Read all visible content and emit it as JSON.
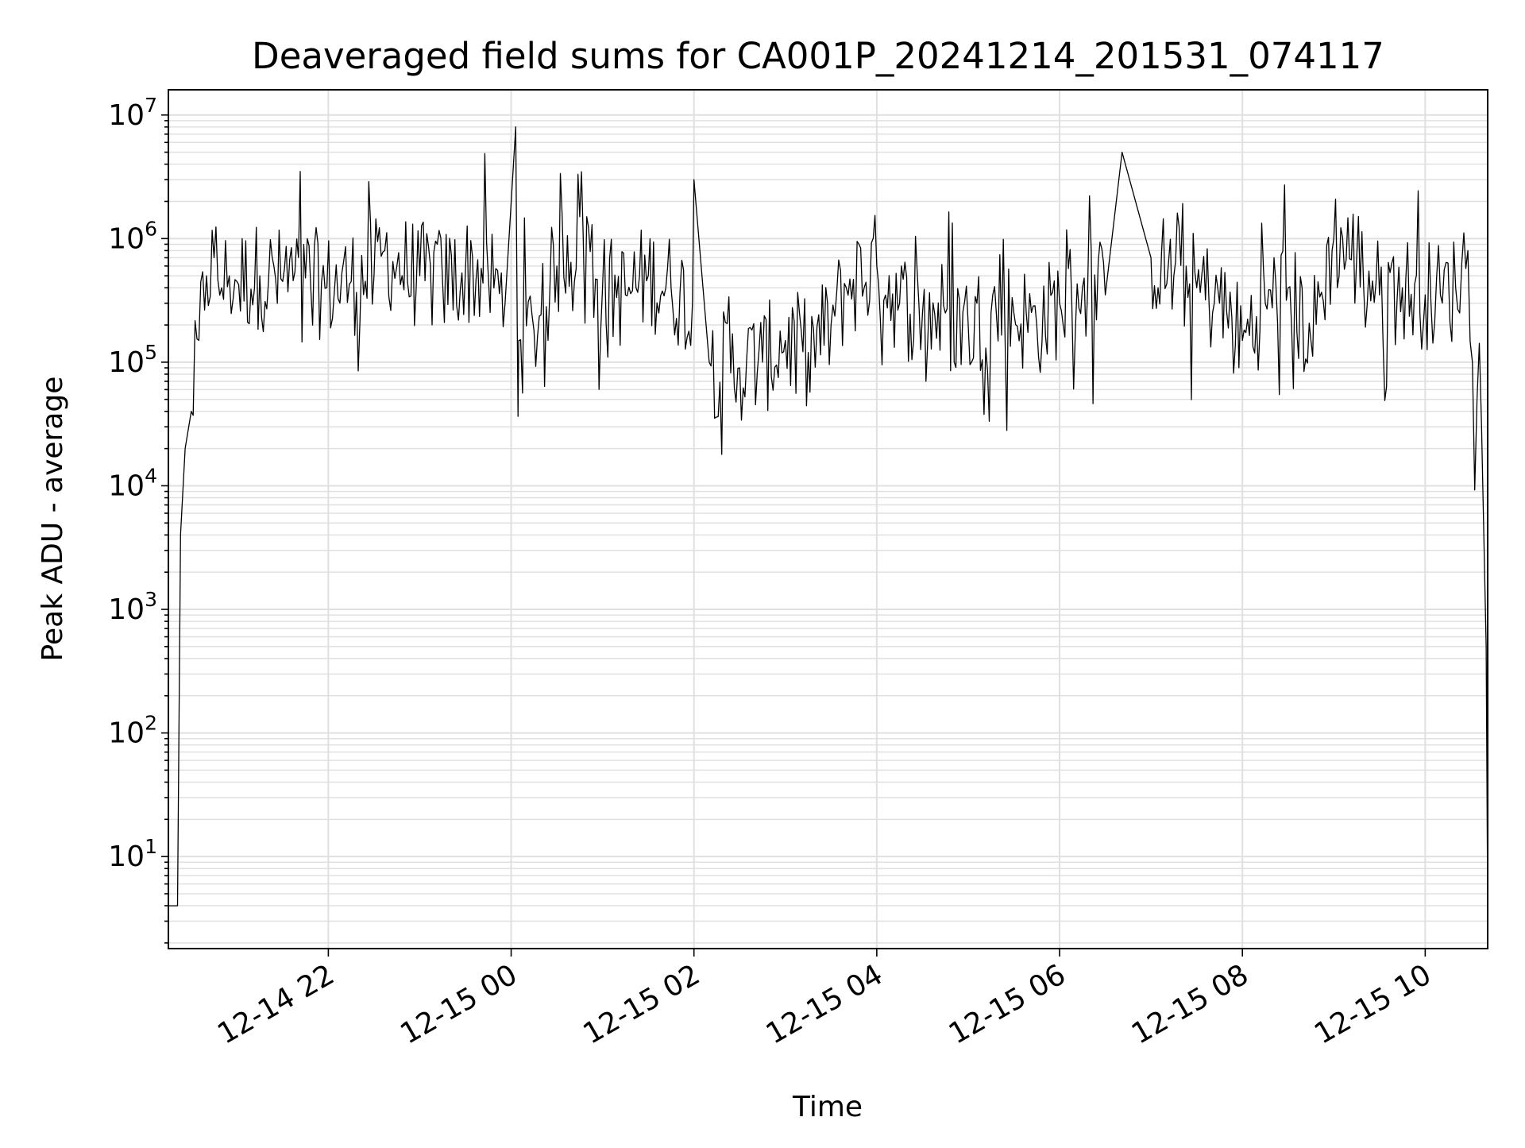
{
  "chart_data": {
    "type": "line",
    "title": "Deaveraged field sums for CA001P_20241214_201531_074117",
    "xlabel": "Time",
    "ylabel": "Peak ADU - average",
    "x_scale": "time",
    "y_scale": "log",
    "xlim": [
      "2024-12-14 20:15",
      "2024-12-15 10:41"
    ],
    "ylim": [
      1.8,
      16000000
    ],
    "grid": true,
    "grid_color": "#e0e0e0",
    "line_color": "#000000",
    "x_ticks": [
      {
        "value": "2024-12-14 22:00",
        "label": "12-14 22"
      },
      {
        "value": "2024-12-15 00:00",
        "label": "12-15 00"
      },
      {
        "value": "2024-12-15 02:00",
        "label": "12-15 02"
      },
      {
        "value": "2024-12-15 04:00",
        "label": "12-15 04"
      },
      {
        "value": "2024-12-15 06:00",
        "label": "12-15 06"
      },
      {
        "value": "2024-12-15 08:00",
        "label": "12-15 08"
      },
      {
        "value": "2024-12-15 10:00",
        "label": "12-15 10"
      }
    ],
    "y_ticks": [
      {
        "value": 10,
        "base": "10",
        "exp": "1"
      },
      {
        "value": 100,
        "base": "10",
        "exp": "2"
      },
      {
        "value": 1000,
        "base": "10",
        "exp": "3"
      },
      {
        "value": 10000,
        "base": "10",
        "exp": "4"
      },
      {
        "value": 100000,
        "base": "10",
        "exp": "5"
      },
      {
        "value": 1000000,
        "base": "10",
        "exp": "6"
      },
      {
        "value": 10000000,
        "base": "10",
        "exp": "7"
      }
    ],
    "series": [
      {
        "x": [
          "2024-12-14 20:15",
          "2024-12-14 20:18",
          "2024-12-14 20:21",
          "2024-12-14 20:23",
          "2024-12-14 20:26",
          "2024-12-14 20:30",
          "2024-12-14 20:35",
          "2024-12-14 20:40",
          "2024-12-14 20:45",
          "2024-12-14 20:50",
          "2024-12-14 20:55",
          "2024-12-14 21:00",
          "2024-12-14 21:15",
          "2024-12-14 21:30",
          "2024-12-14 21:45",
          "2024-12-14 21:59",
          "2024-12-14 22:15",
          "2024-12-14 22:30",
          "2024-12-14 22:37",
          "2024-12-14 22:45",
          "2024-12-14 23:00",
          "2024-12-14 23:15",
          "2024-12-14 23:30",
          "2024-12-14 23:45",
          "2024-12-14 23:56",
          "2024-12-15 00:03",
          "2024-12-15 00:04",
          "2024-12-15 00:05",
          "2024-12-15 00:15",
          "2024-12-15 00:30",
          "2024-12-15 00:45",
          "2024-12-15 01:00",
          "2024-12-15 01:15",
          "2024-12-15 01:30",
          "2024-12-15 01:45",
          "2024-12-15 01:59",
          "2024-12-15 02:00",
          "2024-12-15 02:10",
          "2024-12-15 02:30",
          "2024-12-15 02:45",
          "2024-12-15 03:00",
          "2024-12-15 03:15",
          "2024-12-15 03:30",
          "2024-12-15 03:40",
          "2024-12-15 04:00",
          "2024-12-15 04:15",
          "2024-12-15 04:30",
          "2024-12-15 04:45",
          "2024-12-15 05:00",
          "2024-12-15 05:15",
          "2024-12-15 05:30",
          "2024-12-15 05:45",
          "2024-12-15 06:00",
          "2024-12-15 06:15",
          "2024-12-15 06:30",
          "2024-12-15 06:41",
          "2024-12-15 07:00",
          "2024-12-15 07:15",
          "2024-12-15 07:30",
          "2024-12-15 07:45",
          "2024-12-15 08:00",
          "2024-12-15 08:15",
          "2024-12-15 08:30",
          "2024-12-15 08:45",
          "2024-12-15 09:00",
          "2024-12-15 09:15",
          "2024-12-15 09:30",
          "2024-12-15 09:45",
          "2024-12-15 10:00",
          "2024-12-15 10:10",
          "2024-12-15 10:20",
          "2024-12-15 10:28",
          "2024-12-15 10:31",
          "2024-12-15 10:34",
          "2024-12-15 10:37",
          "2024-12-15 10:40",
          "2024-12-15 10:41"
        ],
        "y": [
          4,
          4,
          4,
          4000,
          20000,
          40000,
          150000,
          500000,
          700000,
          400000,
          500000,
          450000,
          500000,
          450000,
          480000,
          400000,
          450000,
          500000,
          800000,
          600000,
          500000,
          450000,
          550000,
          500000,
          300000,
          8000000,
          200000,
          150000,
          180000,
          600000,
          1500000,
          400000,
          350000,
          500000,
          400000,
          300000,
          3000000,
          100000,
          90000,
          100000,
          150000,
          120000,
          200000,
          400000,
          600000,
          300000,
          250000,
          250000,
          200000,
          250000,
          250000,
          200000,
          300000,
          400000,
          350000,
          5000000,
          700000,
          500000,
          400000,
          300000,
          150000,
          300000,
          400000,
          150000,
          1000000,
          700000,
          350000,
          400000,
          350000,
          350000,
          400000,
          800000,
          100000,
          50000,
          30000,
          500,
          4
        ]
      }
    ]
  }
}
